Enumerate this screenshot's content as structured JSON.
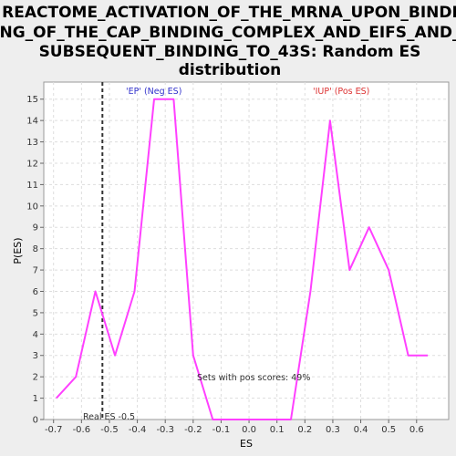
{
  "chart_data": {
    "type": "line",
    "title_lines": [
      "REACTOME_ACTIVATION_OF_THE_MRNA_UPON_BINDI",
      "NG_OF_THE_CAP_BINDING_COMPLEX_AND_EIFS_AND_",
      "SUBSEQUENT_BINDING_TO_43S: Random ES",
      "distribution"
    ],
    "xlabel": "ES",
    "ylabel": "P(ES)",
    "xlim": [
      -0.735,
      0.715
    ],
    "ylim": [
      0,
      15.8
    ],
    "xticks": [
      -0.7,
      -0.6,
      -0.5,
      -0.4,
      -0.3,
      -0.2,
      -0.1,
      0.0,
      0.1,
      0.2,
      0.3,
      0.4,
      0.5,
      0.6
    ],
    "xtick_labels": [
      "-0.7",
      "-0.6",
      "-0.5",
      "-0.4",
      "-0.3",
      "-0.2",
      "-0.1",
      "0.0",
      "0.1",
      "0.2",
      "0.3",
      "0.4",
      "0.5",
      "0.6"
    ],
    "yticks": [
      0,
      1,
      2,
      3,
      4,
      5,
      6,
      7,
      8,
      9,
      10,
      11,
      12,
      13,
      14,
      15
    ],
    "ytick_labels": [
      "0",
      "1",
      "2",
      "3",
      "4",
      "5",
      "6",
      "7",
      "8",
      "9",
      "10",
      "11",
      "12",
      "13",
      "14",
      "15"
    ],
    "grid": true,
    "series": [
      {
        "color": "#ff40ff",
        "x": [
          -0.69,
          -0.62,
          -0.55,
          -0.48,
          -0.41,
          -0.34,
          -0.27,
          -0.2,
          -0.13,
          -0.06,
          0.01,
          0.08,
          0.15,
          0.22,
          0.29,
          0.36,
          0.43,
          0.5,
          0.57,
          0.64
        ],
        "y": [
          1,
          2,
          6,
          3,
          6,
          15,
          15,
          3,
          0,
          0,
          0,
          0,
          0,
          6,
          14,
          7,
          9,
          7,
          3,
          3
        ]
      }
    ],
    "real_es": -0.525,
    "real_es_label": "Real ES -0.5",
    "annotations": {
      "neg": {
        "text": "'EP' (Neg ES)",
        "color": "#3333cc"
      },
      "pos": {
        "text": "'IUP' (Pos ES)",
        "color": "#dd3333"
      },
      "summary": {
        "text": "Sets with pos scores: 49%",
        "color": "#333333"
      }
    }
  }
}
